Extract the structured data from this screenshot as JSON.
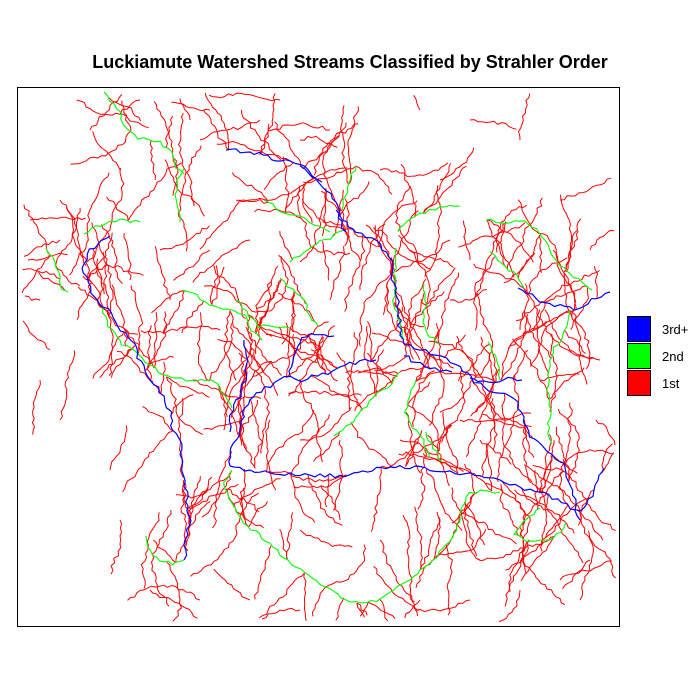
{
  "title": "Luckiamute Watershed Streams Classified by Strahler Order",
  "legend": {
    "items": [
      {
        "label": "3rd+",
        "color": "#0000ff"
      },
      {
        "label": "2nd",
        "color": "#00ff00"
      },
      {
        "label": "1st",
        "color": "#ff0000"
      }
    ]
  },
  "colors": {
    "order3": "#0000ff",
    "order2": "#00ff00",
    "order1": "#ff0000",
    "frame": "#000000",
    "background": "#ffffff"
  }
}
